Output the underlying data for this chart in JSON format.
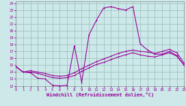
{
  "xlabel": "Windchill (Refroidissement éolien,°C)",
  "bg_color": "#cce8e8",
  "grid_color": "#99bbbb",
  "line_color": "#990099",
  "xlim": [
    0,
    23
  ],
  "ylim": [
    12,
    24.3
  ],
  "xticks": [
    0,
    1,
    2,
    3,
    4,
    5,
    6,
    7,
    8,
    9,
    10,
    11,
    12,
    13,
    14,
    15,
    16,
    17,
    18,
    19,
    20,
    21,
    22,
    23
  ],
  "yticks": [
    12,
    13,
    14,
    15,
    16,
    17,
    18,
    19,
    20,
    21,
    22,
    23,
    24
  ],
  "curve1_x": [
    0,
    1,
    2,
    3,
    4,
    5,
    6,
    7,
    8,
    9,
    10,
    11,
    12,
    13,
    14,
    15,
    16,
    17,
    18,
    19,
    20,
    21,
    22,
    23
  ],
  "curve1_y": [
    14.8,
    14.0,
    13.9,
    13.1,
    13.0,
    12.1,
    12.0,
    12.1,
    17.8,
    12.5,
    19.4,
    21.5,
    23.3,
    23.5,
    23.2,
    23.0,
    23.5,
    18.1,
    17.2,
    16.6,
    16.6,
    17.0,
    16.4,
    15.0
  ],
  "curve2_x": [
    0,
    1,
    2,
    3,
    4,
    5,
    6,
    7,
    8,
    9,
    10,
    11,
    12,
    13,
    14,
    15,
    16,
    17,
    18,
    19,
    20,
    21,
    22,
    23
  ],
  "curve2_y": [
    14.8,
    14.0,
    14.0,
    13.8,
    13.5,
    13.2,
    13.1,
    13.2,
    13.5,
    14.1,
    14.6,
    15.1,
    15.4,
    15.8,
    16.2,
    16.5,
    16.8,
    16.5,
    16.3,
    16.2,
    16.5,
    16.8,
    16.3,
    15.0
  ],
  "curve3_x": [
    0,
    1,
    2,
    3,
    4,
    5,
    6,
    7,
    8,
    9,
    10,
    11,
    12,
    13,
    14,
    15,
    16,
    17,
    18,
    19,
    20,
    21,
    22,
    23
  ],
  "curve3_y": [
    14.8,
    14.0,
    14.2,
    14.0,
    13.8,
    13.5,
    13.4,
    13.5,
    13.9,
    14.5,
    15.0,
    15.5,
    15.9,
    16.3,
    16.7,
    17.0,
    17.2,
    17.0,
    16.9,
    16.7,
    17.0,
    17.3,
    16.8,
    15.3
  ]
}
